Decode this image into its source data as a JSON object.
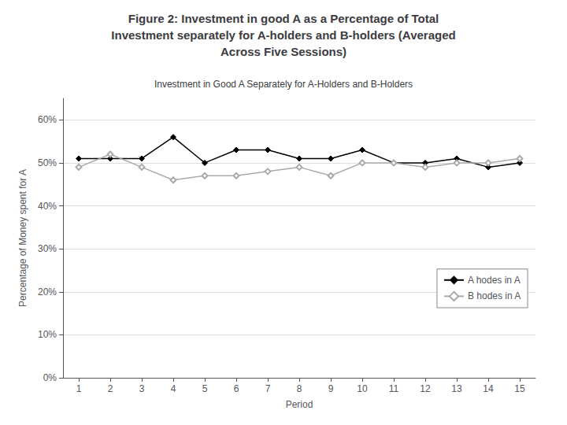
{
  "chart_data": {
    "type": "line",
    "title": "Figure 2: Investment in good A as a Percentage of Total\nInvestment separately for A-holders and B-holders (Averaged\nAcross Five Sessions)",
    "subtitle": "Investment in Good A Separately for A-Holders and B-Holders",
    "x_label": "Period",
    "y_label": "Percentage of Money spent for A",
    "x": [
      1,
      2,
      3,
      4,
      5,
      6,
      7,
      8,
      9,
      10,
      11,
      12,
      13,
      14,
      15
    ],
    "series": [
      {
        "name": "A ho​de​s in A",
        "color": "#000000",
        "marker": "diamond",
        "values": [
          51,
          51,
          51,
          56,
          50,
          53,
          53,
          51,
          51,
          53,
          50,
          50,
          51,
          49,
          50
        ]
      },
      {
        "name": "B ho​de​s in A",
        "color": "#aaaaaa",
        "marker": "open_diamond",
        "values": [
          49,
          52,
          49,
          46,
          47,
          47,
          48,
          49,
          47,
          50,
          50,
          49,
          50,
          50,
          51
        ]
      }
    ],
    "xlim": [
      0.5,
      15.5
    ],
    "xticks": [
      1,
      2,
      3,
      4,
      5,
      6,
      7,
      8,
      9,
      10,
      11,
      12,
      13,
      14,
      15
    ],
    "ylim": [
      0,
      65
    ],
    "yticks": [
      {
        "value": 0,
        "label": "0%"
      },
      {
        "value": 10,
        "label": "10%"
      },
      {
        "value": 20,
        "label": "20%"
      },
      {
        "value": 30,
        "label": "30%"
      },
      {
        "value": 40,
        "label": "40%"
      },
      {
        "value": 50,
        "label": "50%"
      },
      {
        "value": 60,
        "label": "60%"
      }
    ],
    "grid": true,
    "legend": "lower right"
  }
}
